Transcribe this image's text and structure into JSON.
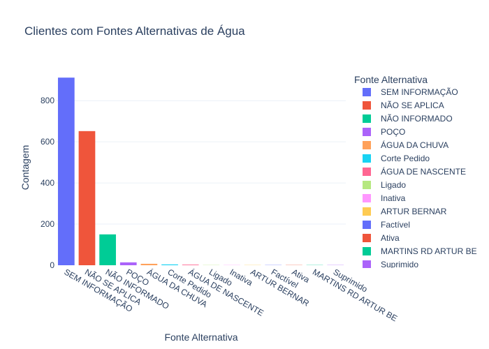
{
  "chart_data": {
    "type": "bar",
    "title": "Clientes com Fontes Alternativas de Água",
    "xlabel": "Fonte Alternativa",
    "ylabel": "Contagem",
    "ylim": [
      0,
      950
    ],
    "yticks": [
      0,
      200,
      400,
      600,
      800
    ],
    "grid": true,
    "legend_title": "Fonte Alternativa",
    "legend_position": "right",
    "categories": [
      "SEM INFORMAÇÃO",
      "NÃO SE APLICA",
      "NÃO INFORMADO",
      "POÇO",
      "ÁGUA DA CHUVA",
      "Corte Pedido",
      "ÁGUA DE NASCENTE",
      "Ligado",
      "Inativa",
      "ARTUR BERNAR",
      "Factível",
      "Ativa",
      "MARTINS RD ARTUR BE",
      "Suprimido"
    ],
    "values": [
      912,
      652,
      150,
      14,
      7,
      4,
      3,
      1,
      1,
      1,
      1,
      1,
      1,
      1
    ],
    "colors": [
      "#636efa",
      "#EF553B",
      "#00cc96",
      "#ab63fa",
      "#FFA15A",
      "#19d3f3",
      "#FF6692",
      "#B6E880",
      "#FF97FF",
      "#FECB52",
      "#636efa",
      "#EF553B",
      "#00cc96",
      "#ab63fa"
    ],
    "legend_entries": [
      "SEM INFORMAÇÃO",
      "NÃO SE APLICA",
      "NÃO INFORMADO",
      "POÇO",
      "ÁGUA DA CHUVA",
      "Corte Pedido",
      "ÁGUA DE NASCENTE",
      "Ligado",
      "Inativa",
      "ARTUR BERNAR",
      "Factível",
      "Ativa",
      "MARTINS RD ARTUR BE",
      "Suprimido"
    ]
  }
}
